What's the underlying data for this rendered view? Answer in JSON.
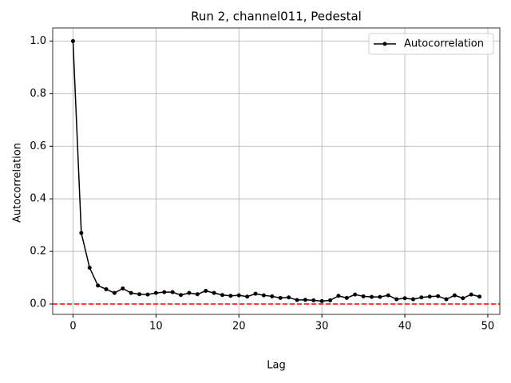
{
  "chart_data": {
    "type": "line",
    "title": "Run 2, channel011, Pedestal",
    "xlabel": "Lag",
    "ylabel": "Autocorrelation",
    "x": [
      0,
      1,
      2,
      3,
      4,
      5,
      6,
      7,
      8,
      9,
      10,
      11,
      12,
      13,
      14,
      15,
      16,
      17,
      18,
      19,
      20,
      21,
      22,
      23,
      24,
      25,
      26,
      27,
      28,
      29,
      30,
      31,
      32,
      33,
      34,
      35,
      36,
      37,
      38,
      39,
      40,
      41,
      42,
      43,
      44,
      45,
      46,
      47,
      48,
      49
    ],
    "series": [
      {
        "name": "Autocorrelation",
        "color": "#000000",
        "values": [
          1.0,
          0.27,
          0.138,
          0.07,
          0.056,
          0.042,
          0.059,
          0.042,
          0.037,
          0.036,
          0.042,
          0.045,
          0.045,
          0.034,
          0.042,
          0.037,
          0.05,
          0.042,
          0.034,
          0.031,
          0.033,
          0.028,
          0.039,
          0.033,
          0.029,
          0.023,
          0.025,
          0.015,
          0.016,
          0.014,
          0.011,
          0.014,
          0.031,
          0.023,
          0.036,
          0.029,
          0.027,
          0.027,
          0.033,
          0.018,
          0.022,
          0.018,
          0.025,
          0.028,
          0.03,
          0.018,
          0.033,
          0.022,
          0.036,
          0.028
        ]
      }
    ],
    "hline": 0,
    "hline_color": "#ff0000",
    "xlim": [
      -2.45,
      51.45
    ],
    "xticks": [
      0,
      10,
      20,
      30,
      40,
      50
    ],
    "ylim": [
      -0.0395,
      1.05
    ],
    "yticks": [
      {
        "value": 0,
        "label": "0.0"
      },
      {
        "value": 0.2,
        "label": "0.2"
      },
      {
        "value": 0.4,
        "label": "0.4"
      },
      {
        "value": 0.6,
        "label": "0.6"
      },
      {
        "value": 0.8,
        "label": "0.8"
      },
      {
        "value": 1.0,
        "label": "1.0"
      }
    ],
    "grid": true,
    "legend": "upper right"
  }
}
